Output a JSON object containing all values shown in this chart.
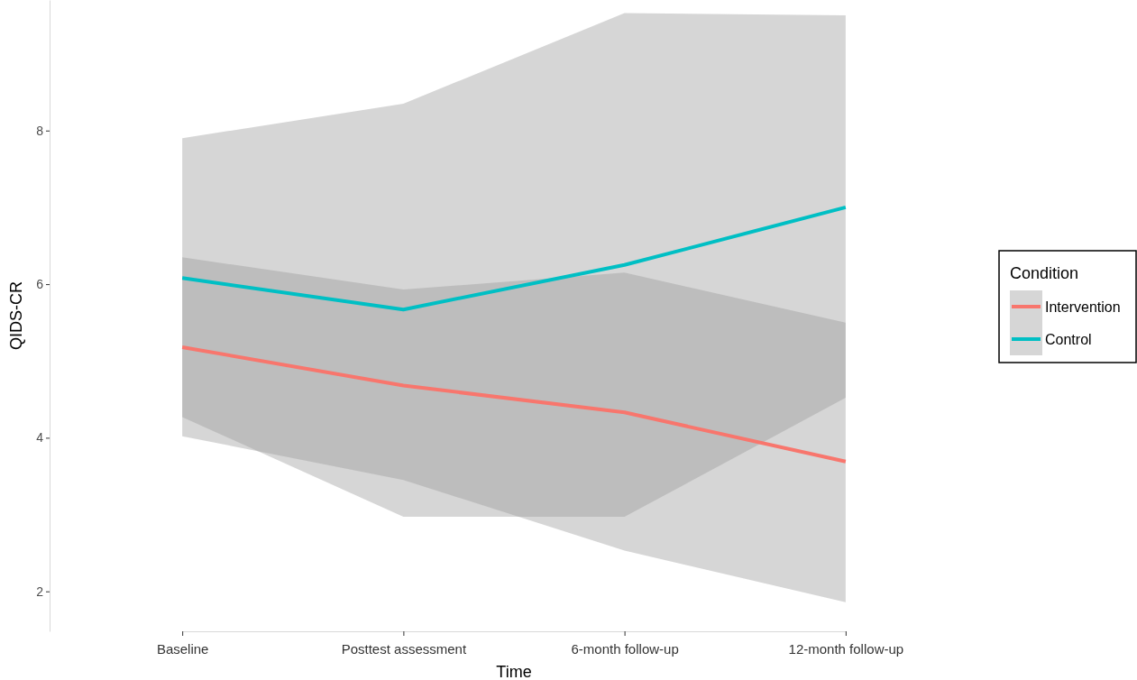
{
  "chart_data": {
    "type": "line",
    "xlabel": "Time",
    "ylabel": "QIDS-CR",
    "legend_title": "Condition",
    "categories": [
      "Baseline",
      "Posttest assessment",
      "6-month follow-up",
      "12-month follow-up"
    ],
    "series": [
      {
        "name": "Intervention",
        "color": "#f8766d",
        "values": [
          5.18,
          4.68,
          4.33,
          3.69
        ],
        "lower": [
          4.27,
          2.97,
          2.97,
          4.52
        ],
        "upper": [
          6.35,
          5.93,
          6.15,
          5.5
        ]
      },
      {
        "name": "Control",
        "color": "#00bfc4",
        "values": [
          6.08,
          5.67,
          6.25,
          7.0
        ],
        "lower": [
          4.02,
          3.45,
          2.53,
          1.86
        ],
        "upper": [
          7.9,
          8.35,
          9.53,
          9.5
        ]
      }
    ],
    "ylim": [
      1.48,
      9.7
    ],
    "yticks": [
      2,
      4,
      6,
      8
    ],
    "grid": false,
    "legend": "right",
    "marker": "none",
    "line_style": "solid"
  }
}
